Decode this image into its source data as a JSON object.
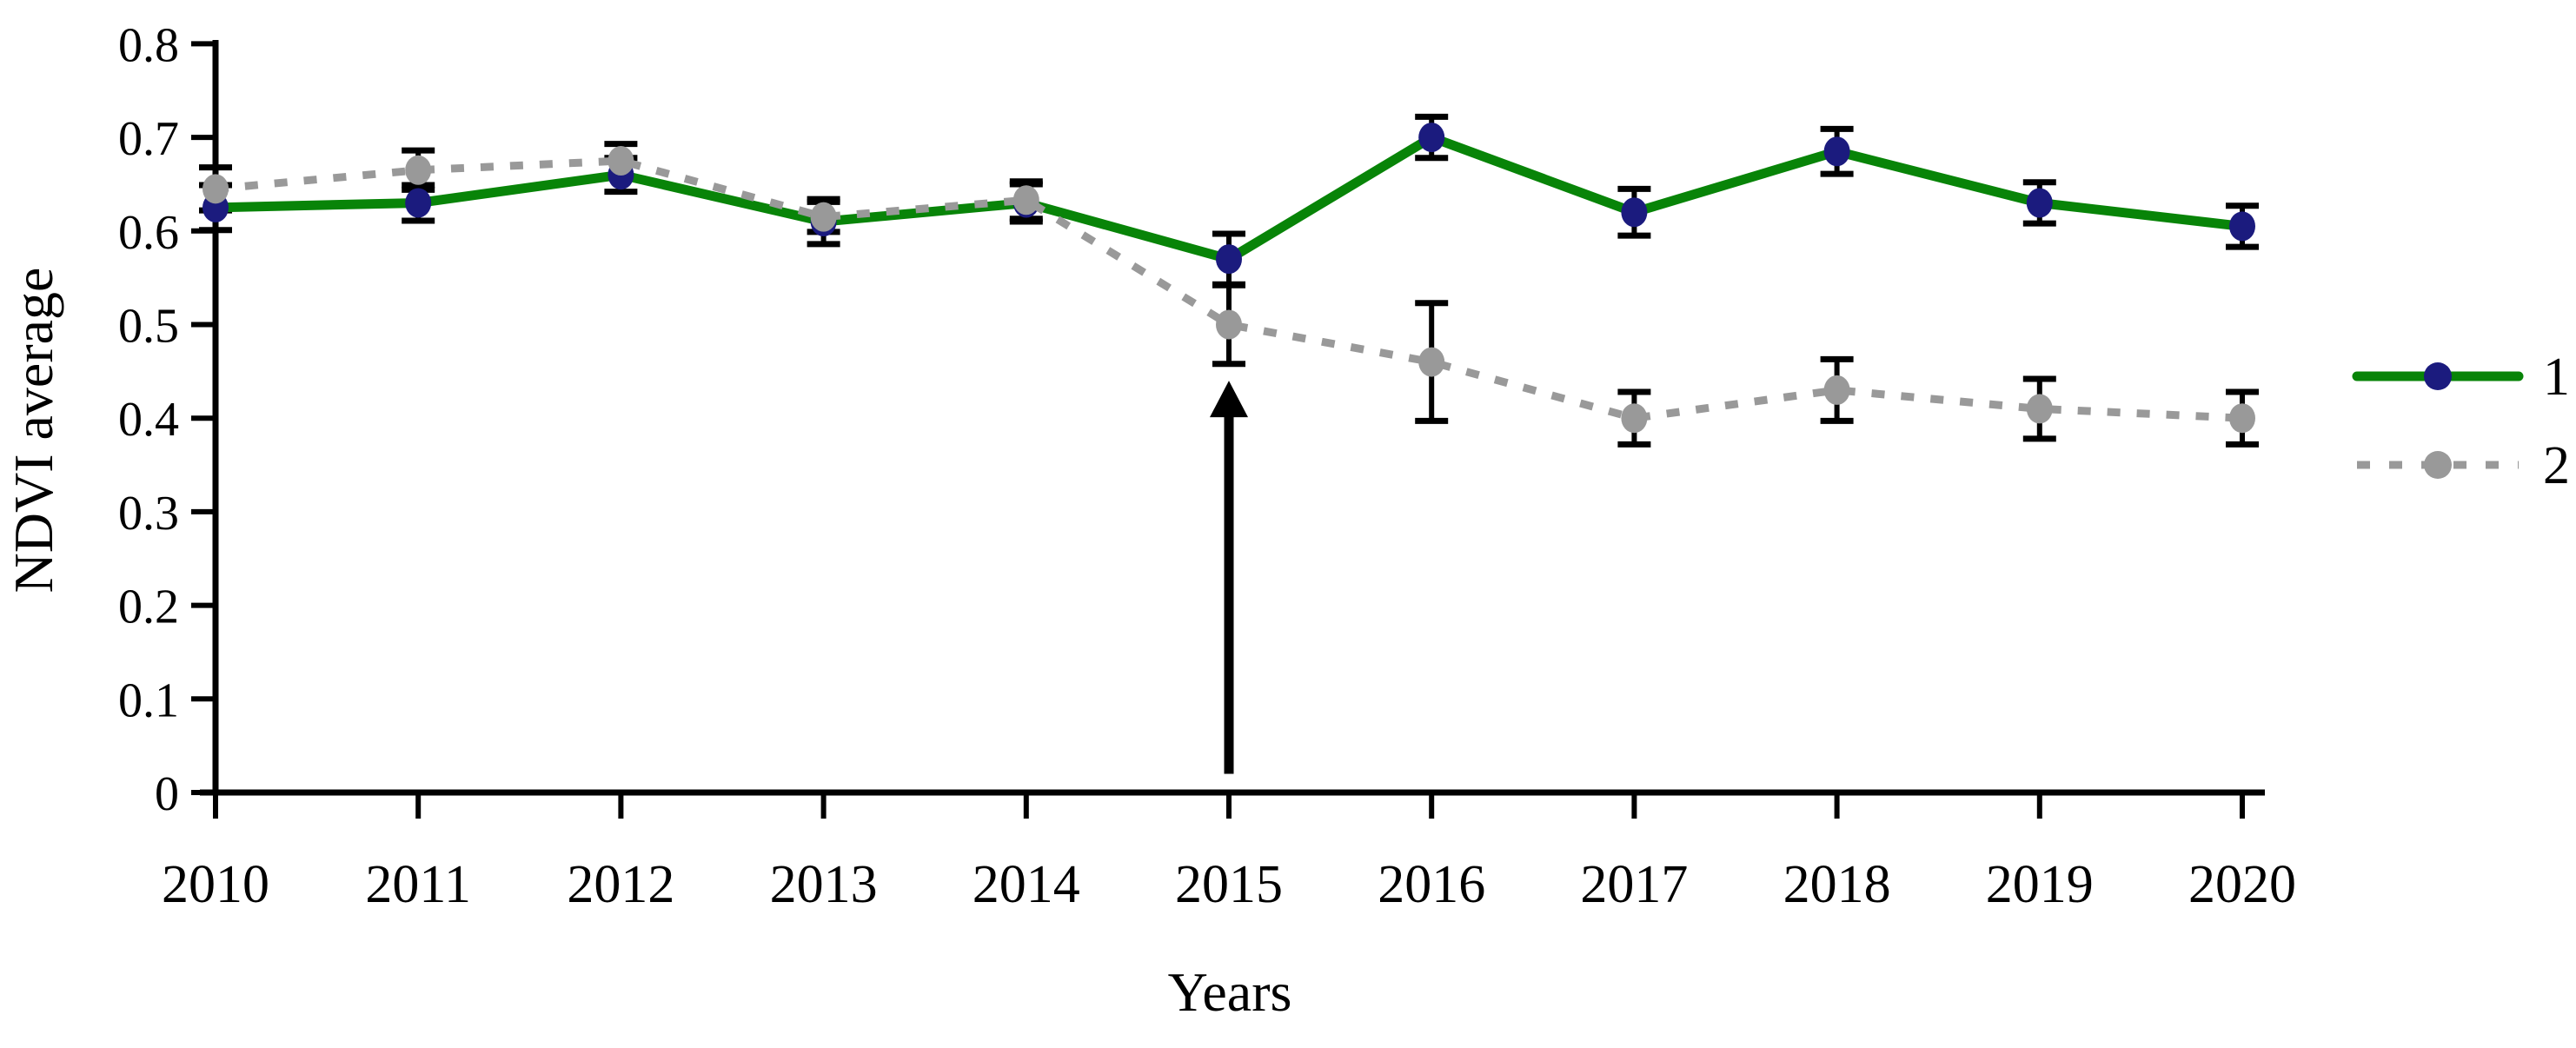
{
  "figure": {
    "background": "#ffffff"
  },
  "chart_data": {
    "type": "line",
    "title": "",
    "xlabel": "Years",
    "ylabel": "NDVI average",
    "categories": [
      "2010",
      "2011",
      "2012",
      "2013",
      "2014",
      "2015",
      "2016",
      "2017",
      "2018",
      "2019",
      "2020"
    ],
    "ylim": [
      0,
      0.8
    ],
    "yticks": [
      0,
      0.1,
      0.2,
      0.3,
      0.4,
      0.5,
      0.6,
      0.7,
      0.8
    ],
    "ytick_labels": [
      "0",
      "0.1",
      "0.2",
      "0.3",
      "0.4",
      "0.5",
      "0.6",
      "0.7",
      "0.8"
    ],
    "grid": false,
    "legend_position": "right",
    "error_bar_color": "#000000",
    "axis_color": "#000000",
    "series": [
      {
        "name": "1",
        "line_style": "solid",
        "line_color": "#088408",
        "marker": "circle",
        "marker_color": "#1b1b7e",
        "values": [
          0.625,
          0.63,
          0.66,
          0.61,
          0.63,
          0.57,
          0.7,
          0.62,
          0.685,
          0.63,
          0.605
        ],
        "errors": [
          0.024,
          0.019,
          0.018,
          0.024,
          0.02,
          0.027,
          0.022,
          0.025,
          0.024,
          0.022,
          0.022
        ]
      },
      {
        "name": "2",
        "line_style": "dashed",
        "line_color": "#999999",
        "marker": "circle",
        "marker_color": "#999999",
        "values": [
          0.645,
          0.665,
          0.675,
          0.615,
          0.633,
          0.5,
          0.46,
          0.4,
          0.43,
          0.41,
          0.4
        ],
        "errors": [
          0.023,
          0.021,
          0.018,
          0.016,
          0.02,
          0.042,
          0.063,
          0.028,
          0.033,
          0.032,
          0.028
        ]
      }
    ],
    "annotations": [
      {
        "type": "arrow",
        "direction": "up",
        "x": "2015",
        "y_start": 0.02,
        "y_end": 0.44,
        "color": "#000000"
      }
    ]
  }
}
